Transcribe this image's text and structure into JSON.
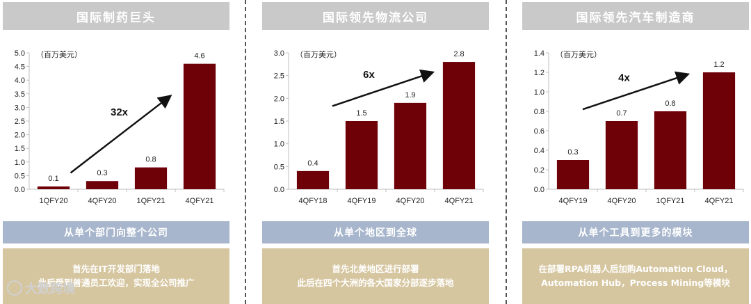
{
  "colors": {
    "bar": "#6e0008",
    "header_bg": "#c9c9c9",
    "sub_bg": "#a7b6cc",
    "desc_bg": "#d6c6a0"
  },
  "panels": [
    {
      "title": "国际制药巨头",
      "subtitle": "从单个部门向整个公司",
      "desc": [
        "首先在IT开发部门落地",
        "此后受到普通员工欢迎，实现全公司推广"
      ]
    },
    {
      "title": "国际领先物流公司",
      "subtitle": "从单个地区到全球",
      "desc": [
        "首先北美地区进行部署",
        "此后在四个大洲的各大国家分部逐步落地"
      ]
    },
    {
      "title": "国际领先汽车制造商",
      "subtitle": "从单个工具到更多的模块",
      "desc": [
        "在部署RPA机器人后加购Automation Cloud，",
        "Automation Hub，Process Mining等模块"
      ]
    }
  ],
  "watermark": "大数跨境",
  "chart_data": [
    {
      "type": "bar",
      "unit": "（百万美元）",
      "categories": [
        "1QFY20",
        "4QFY20",
        "1QFY21",
        "4QFY21"
      ],
      "values": [
        0.1,
        0.3,
        0.8,
        4.6
      ],
      "value_labels": [
        "0.1",
        "0.3",
        "0.8",
        "4.6"
      ],
      "ylim": [
        0,
        5
      ],
      "yticks": [
        "0.0",
        "0.5",
        "1.0",
        "1.5",
        "2.0",
        "2.5",
        "3.0",
        "3.5",
        "4.0",
        "4.5",
        "5.0"
      ],
      "growth": "32x",
      "arrow": [
        [
          0.85,
          0.6
        ],
        [
          2.85,
          3.35
        ]
      ],
      "growth_pos": [
        1.85,
        2.7
      ]
    },
    {
      "type": "bar",
      "unit": "（百万美元）",
      "categories": [
        "4QFY18",
        "4QFY19",
        "4QFY20",
        "4QFY21"
      ],
      "values": [
        0.4,
        1.5,
        1.9,
        2.8
      ],
      "value_labels": [
        "0.4",
        "1.5",
        "1.9",
        "2.8"
      ],
      "ylim": [
        0,
        3
      ],
      "yticks": [
        "0.0",
        "0.5",
        "1.0",
        "1.5",
        "2.0",
        "2.5",
        "3.0"
      ],
      "growth": "6x",
      "arrow": [
        [
          0.9,
          1.83
        ],
        [
          2.9,
          2.55
        ]
      ],
      "growth_pos": [
        1.65,
        2.45
      ]
    },
    {
      "type": "bar",
      "unit": "（百万美元）",
      "categories": [
        "4QFY19",
        "4QFY20",
        "1QFY21",
        "4QFY21"
      ],
      "values": [
        0.3,
        0.7,
        0.8,
        1.2
      ],
      "value_labels": [
        "0.3",
        "0.7",
        "0.8",
        "1.2"
      ],
      "ylim": [
        0,
        1.4
      ],
      "yticks": [
        "0.0",
        "0.2",
        "0.4",
        "0.6",
        "0.8",
        "1.0",
        "1.2",
        "1.4"
      ],
      "growth": "4x",
      "arrow": [
        [
          0.7,
          0.82
        ],
        [
          2.8,
          1.17
        ]
      ],
      "growth_pos": [
        1.55,
        1.11
      ]
    }
  ]
}
